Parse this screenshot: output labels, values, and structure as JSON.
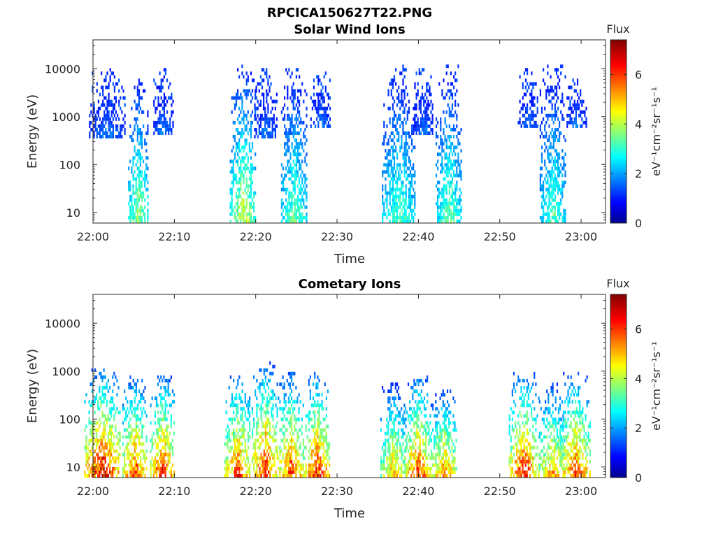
{
  "figure_title": "RPCICA150627T22.PNG",
  "colors": {
    "axis": "#262626",
    "background": "#ffffff"
  },
  "chart_data": [
    {
      "type": "heatmap",
      "title": "Solar Wind Ions",
      "xlabel": "Time",
      "ylabel": "Energy (eV)",
      "x_ticks": [
        "22:00",
        "22:10",
        "22:20",
        "22:30",
        "22:40",
        "22:50",
        "23:00"
      ],
      "xlim": [
        "22:00",
        "23:03"
      ],
      "y_scale": "log",
      "y_ticks": [
        "10",
        "100",
        "1000",
        "10000"
      ],
      "ylim": [
        6,
        40000
      ],
      "grid": false,
      "colorbar": {
        "title": "Flux",
        "label": "eV⁻¹cm⁻²sr⁻¹s⁻¹",
        "ticks": [
          "0",
          "2",
          "4",
          "6"
        ],
        "range": [
          0,
          7.4
        ],
        "colormap": "jet"
      },
      "bursts": [
        {
          "center_min": 5.6,
          "emin": 6,
          "emax": 6000,
          "vmax": 4.2,
          "width": 1.2
        },
        {
          "center_min": 1.8,
          "emin": 300,
          "emax": 9000,
          "vmax": 2.0,
          "width": 2.2
        },
        {
          "center_min": 8.7,
          "emin": 400,
          "emax": 9000,
          "vmax": 2.0,
          "width": 1.2
        },
        {
          "center_min": 18.5,
          "emin": 6,
          "emax": 12000,
          "vmax": 4.5,
          "width": 1.6
        },
        {
          "center_min": 21.3,
          "emin": 300,
          "emax": 9000,
          "vmax": 2.0,
          "width": 1.4
        },
        {
          "center_min": 24.8,
          "emin": 6,
          "emax": 9000,
          "vmax": 3.8,
          "width": 1.6
        },
        {
          "center_min": 28.0,
          "emin": 500,
          "emax": 9000,
          "vmax": 2.0,
          "width": 1.2
        },
        {
          "center_min": 37.6,
          "emin": 6,
          "emax": 12000,
          "vmax": 3.6,
          "width": 2.0
        },
        {
          "center_min": 40.6,
          "emin": 400,
          "emax": 9000,
          "vmax": 2.0,
          "width": 1.2
        },
        {
          "center_min": 43.8,
          "emin": 6,
          "emax": 12000,
          "vmax": 3.8,
          "width": 1.6
        },
        {
          "center_min": 53.5,
          "emin": 500,
          "emax": 9000,
          "vmax": 2.0,
          "width": 1.2
        },
        {
          "center_min": 56.6,
          "emin": 6,
          "emax": 12000,
          "vmax": 3.6,
          "width": 1.6
        },
        {
          "center_min": 59.5,
          "emin": 500,
          "emax": 6000,
          "vmax": 2.0,
          "width": 1.2
        }
      ]
    },
    {
      "type": "heatmap",
      "title": "Cometary Ions",
      "xlabel": "Time",
      "ylabel": "Energy (eV)",
      "x_ticks": [
        "22:00",
        "22:10",
        "22:20",
        "22:30",
        "22:40",
        "22:50",
        "23:00"
      ],
      "xlim": [
        "22:00",
        "23:03"
      ],
      "y_scale": "log",
      "y_ticks": [
        "10",
        "100",
        "1000",
        "10000"
      ],
      "ylim": [
        6,
        40000
      ],
      "grid": false,
      "colorbar": {
        "title": "Flux",
        "label": "eV⁻¹cm⁻²sr⁻¹s⁻¹",
        "ticks": [
          "0",
          "2",
          "4",
          "6"
        ],
        "range": [
          0,
          7.4
        ],
        "colormap": "jet"
      },
      "bursts": [
        {
          "center_min": 1.2,
          "emin": 6,
          "emax": 1000,
          "vmax": 7.2,
          "width": 2.2
        },
        {
          "center_min": 5.2,
          "emin": 6,
          "emax": 800,
          "vmax": 6.5,
          "width": 1.5
        },
        {
          "center_min": 8.6,
          "emin": 6,
          "emax": 800,
          "vmax": 6.8,
          "width": 1.5
        },
        {
          "center_min": 17.8,
          "emin": 6,
          "emax": 800,
          "vmax": 6.5,
          "width": 1.6
        },
        {
          "center_min": 21.2,
          "emin": 6,
          "emax": 1400,
          "vmax": 6.8,
          "width": 1.6
        },
        {
          "center_min": 24.4,
          "emin": 6,
          "emax": 900,
          "vmax": 6.5,
          "width": 1.6
        },
        {
          "center_min": 27.6,
          "emin": 6,
          "emax": 900,
          "vmax": 6.8,
          "width": 1.6
        },
        {
          "center_min": 37.0,
          "emin": 6,
          "emax": 500,
          "vmax": 5.5,
          "width": 1.6
        },
        {
          "center_min": 40.0,
          "emin": 6,
          "emax": 800,
          "vmax": 6.5,
          "width": 1.6
        },
        {
          "center_min": 43.2,
          "emin": 6,
          "emax": 400,
          "vmax": 6.0,
          "width": 1.6
        },
        {
          "center_min": 53.0,
          "emin": 6,
          "emax": 900,
          "vmax": 6.8,
          "width": 1.8
        },
        {
          "center_min": 56.5,
          "emin": 6,
          "emax": 500,
          "vmax": 5.8,
          "width": 1.6
        },
        {
          "center_min": 59.3,
          "emin": 6,
          "emax": 900,
          "vmax": 6.5,
          "width": 1.8
        }
      ]
    }
  ]
}
